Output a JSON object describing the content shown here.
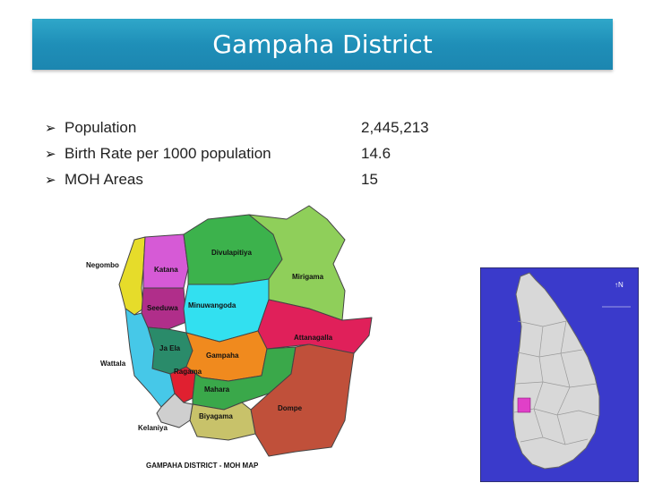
{
  "header": {
    "title": "Gampaha District"
  },
  "stats": [
    {
      "label": "Population",
      "value": "2,445,213"
    },
    {
      "label": "Birth Rate per 1000 population",
      "value": "14.6"
    },
    {
      "label": "MOH Areas",
      "value": "15"
    }
  ],
  "district_map": {
    "caption": "GAMPAHA DISTRICT - MOH MAP",
    "areas": [
      {
        "name": "Negombo",
        "color": "#e6dc2a"
      },
      {
        "name": "Katana",
        "color": "#d65ad6"
      },
      {
        "name": "Divulapitiya",
        "color": "#3cb24c"
      },
      {
        "name": "Mirigama",
        "color": "#8fcf5a"
      },
      {
        "name": "Seeduwa",
        "color": "#b02e8a"
      },
      {
        "name": "Minuwangoda",
        "color": "#32e0f0"
      },
      {
        "name": "Attanagalla",
        "color": "#e0205a"
      },
      {
        "name": "Ja Ela",
        "color": "#2a8b6a"
      },
      {
        "name": "Gampaha",
        "color": "#f08a1e"
      },
      {
        "name": "Wattala",
        "color": "#46c8e8"
      },
      {
        "name": "Ragama",
        "color": "#e02030"
      },
      {
        "name": "Mahara",
        "color": "#3aa84a"
      },
      {
        "name": "Dompe",
        "color": "#c0503a"
      },
      {
        "name": "Biyagama",
        "color": "#c8c26a"
      },
      {
        "name": "Kelaniya",
        "color": "#cfcfcf"
      }
    ]
  },
  "sri_lanka_map": {
    "highlight_color": "#e040c8",
    "sea_color": "#3a3acb",
    "land_color": "#d8d8d8"
  }
}
